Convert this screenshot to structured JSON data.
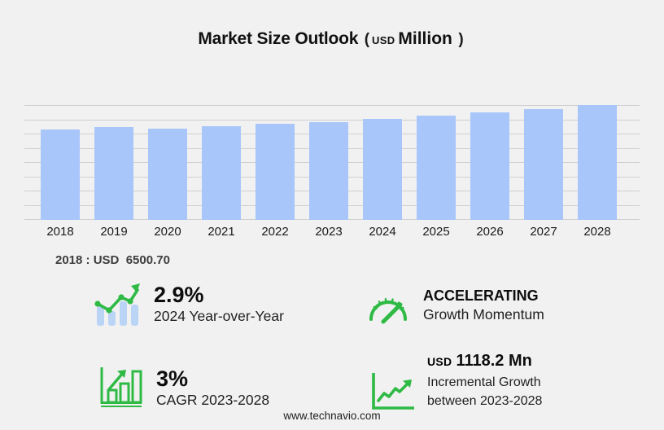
{
  "title": {
    "main": "Market Size Outlook",
    "paren_open": "(",
    "currency": "USD",
    "unit": "Million",
    "paren_close": ")"
  },
  "chart_data": {
    "type": "bar",
    "title": "Market Size Outlook (USD Million)",
    "categories": [
      "2018",
      "2019",
      "2020",
      "2021",
      "2022",
      "2023",
      "2024",
      "2025",
      "2026",
      "2027",
      "2028"
    ],
    "values": [
      6500.7,
      6700,
      6560,
      6720,
      6880,
      7020.6,
      7224.2,
      7460,
      7650,
      7890,
      8138.8
    ],
    "xlabel": "",
    "ylabel": "",
    "ylim": [
      500,
      8100
    ],
    "grid": true,
    "gridline_count": 9,
    "legend": false,
    "bar_color": "#a8c6fa",
    "callout": "2018 : USD  6500.70"
  },
  "callout": {
    "text": "2018 : USD  6500.70"
  },
  "stats": {
    "yoy": {
      "value": "2.9%",
      "label": "2024 Year-over-Year",
      "icon": "bar-trend-arrow-icon"
    },
    "momentum": {
      "value": "ACCELERATING",
      "label": "Growth Momentum",
      "icon": "speedometer-icon"
    },
    "cagr": {
      "value": "3%",
      "label": "CAGR 2023-2028",
      "icon": "bar-growth-arrow-icon"
    },
    "incremental": {
      "currency": "USD",
      "value": "1118.2 Mn",
      "label_line1": "Incremental Growth",
      "label_line2": "between 2023-2028",
      "icon": "line-growth-icon"
    }
  },
  "footer": {
    "url": "www.technavio.com"
  },
  "colors": {
    "background": "#f1f1f2",
    "bar": "#a8c6fa",
    "gridline": "#d0d0d2",
    "green": "#2eba44",
    "icon_bar_blue": "#bad4f6"
  }
}
